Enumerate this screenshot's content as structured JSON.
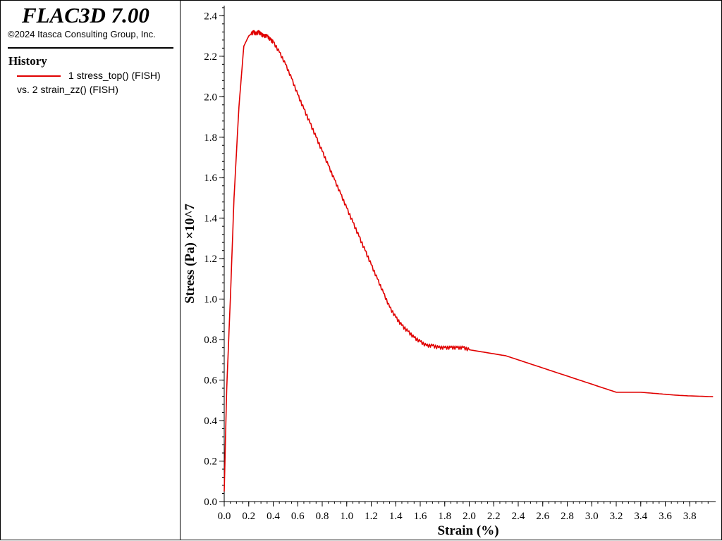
{
  "app": {
    "title": "FLAC3D 7.00",
    "copyright": "©2024 Itasca Consulting Group, Inc."
  },
  "legend": {
    "heading": "History",
    "series_label": "1 stress_top() (FISH)",
    "vs_label": "vs. 2 strain_zz() (FISH)",
    "line_color": "#e00000"
  },
  "chart_data": {
    "type": "line",
    "title": "",
    "xlabel": "Strain (%)",
    "ylabel": "Stress (Pa) ×10^7",
    "xlim": [
      0.0,
      4.0
    ],
    "ylim": [
      0.0,
      2.45
    ],
    "xticks": [
      "0.0",
      "0.2",
      "0.4",
      "0.6",
      "0.8",
      "1.0",
      "1.2",
      "1.4",
      "1.6",
      "1.8",
      "2.0",
      "2.2",
      "2.4",
      "2.6",
      "2.8",
      "3.0",
      "3.2",
      "3.4",
      "3.6",
      "3.8"
    ],
    "yticks": [
      "0.0",
      "0.2",
      "0.4",
      "0.6",
      "0.8",
      "1.0",
      "1.2",
      "1.4",
      "1.6",
      "1.8",
      "2.0",
      "2.2",
      "2.4"
    ],
    "grid": false,
    "legend_position": "left panel",
    "series": [
      {
        "name": "1 stress_top() (FISH)",
        "color": "#e00000",
        "x": [
          0.0,
          0.02,
          0.05,
          0.08,
          0.12,
          0.16,
          0.2,
          0.22,
          0.24,
          0.26,
          0.28,
          0.3,
          0.32,
          0.35,
          0.38,
          0.4,
          0.45,
          0.5,
          0.55,
          0.6,
          0.65,
          0.7,
          0.75,
          0.8,
          0.85,
          0.9,
          0.95,
          1.0,
          1.05,
          1.1,
          1.15,
          1.2,
          1.25,
          1.3,
          1.35,
          1.4,
          1.45,
          1.5,
          1.55,
          1.6,
          1.65,
          1.7,
          1.75,
          1.8,
          1.85,
          1.9,
          1.95,
          2.0,
          2.1,
          2.2,
          2.3,
          2.4,
          2.5,
          2.6,
          2.7,
          2.8,
          2.9,
          3.0,
          3.1,
          3.2,
          3.3,
          3.4,
          3.5,
          3.6,
          3.7,
          3.8,
          3.9,
          3.99
        ],
        "y": [
          0.05,
          0.55,
          1.0,
          1.5,
          1.95,
          2.25,
          2.3,
          2.31,
          2.32,
          2.31,
          2.32,
          2.31,
          2.3,
          2.3,
          2.28,
          2.27,
          2.22,
          2.16,
          2.09,
          2.01,
          1.94,
          1.87,
          1.8,
          1.73,
          1.66,
          1.59,
          1.52,
          1.45,
          1.38,
          1.31,
          1.24,
          1.17,
          1.1,
          1.03,
          0.96,
          0.91,
          0.87,
          0.84,
          0.81,
          0.79,
          0.77,
          0.77,
          0.76,
          0.76,
          0.76,
          0.76,
          0.76,
          0.75,
          0.74,
          0.73,
          0.72,
          0.7,
          0.68,
          0.66,
          0.64,
          0.62,
          0.6,
          0.58,
          0.56,
          0.54,
          0.54,
          0.54,
          0.535,
          0.53,
          0.525,
          0.522,
          0.52,
          0.518
        ]
      }
    ]
  }
}
